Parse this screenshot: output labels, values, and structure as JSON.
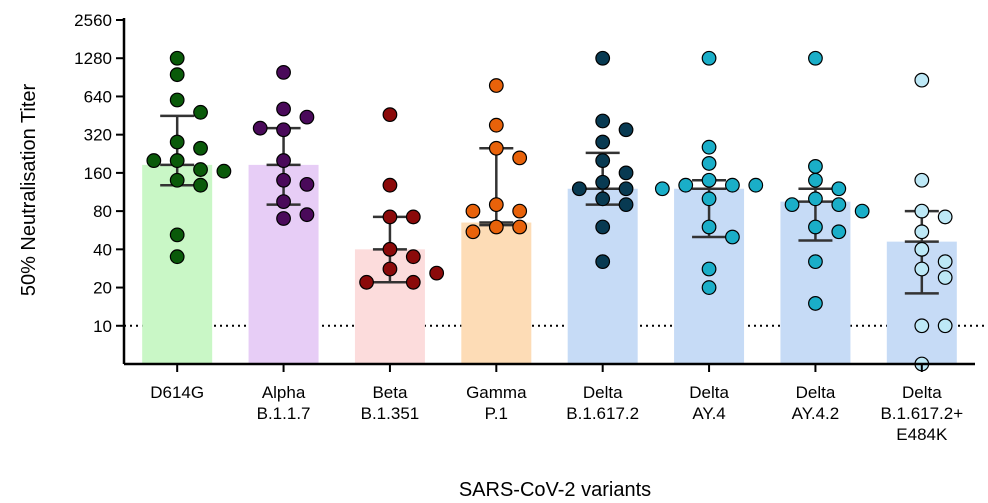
{
  "chart_data": {
    "type": "bar",
    "scale": "log2",
    "ylabel": "50% Neutralisation Titer",
    "xlabel": "SARS-CoV-2 variants",
    "yticks": [
      10,
      20,
      40,
      80,
      160,
      320,
      640,
      1280,
      2560
    ],
    "ytick_labels": [
      "10",
      "20",
      "40",
      "80",
      "160",
      "320",
      "640",
      "1280",
      "2560"
    ],
    "ylim": [
      5,
      2560
    ],
    "threshold": 10,
    "threshold_style": "dotted",
    "categories": [
      {
        "lines": [
          "D614G"
        ],
        "bar": 185,
        "color_bar": "#c9f7c6",
        "color_point": "#0a5a0a",
        "err": [
          128,
          450
        ],
        "points": [
          1280,
          950,
          600,
          480,
          280,
          250,
          200,
          170,
          200,
          165,
          140,
          128,
          52,
          35
        ]
      },
      {
        "lines": [
          "Alpha",
          "B.1.1.7"
        ],
        "bar": 185,
        "color_bar": "#e7cdf6",
        "color_point": "#4a0a5a",
        "err": [
          90,
          360
        ],
        "points": [
          990,
          510,
          440,
          350,
          360,
          200,
          140,
          130,
          95,
          70,
          75
        ]
      },
      {
        "lines": [
          "Beta",
          "B.1.351"
        ],
        "bar": 40,
        "color_bar": "#fcdcdc",
        "color_point": "#8b0a0a",
        "err": [
          22,
          72
        ],
        "points": [
          460,
          128,
          72,
          72,
          40,
          35,
          28,
          22,
          22,
          26
        ]
      },
      {
        "lines": [
          "Gamma",
          "P.1"
        ],
        "bar": 65,
        "color_bar": "#fddcb6",
        "color_point": "#e8620a",
        "err": [
          62,
          250
        ],
        "points": [
          780,
          380,
          250,
          210,
          90,
          80,
          80,
          60,
          60,
          55
        ]
      },
      {
        "lines": [
          "Delta",
          "B.1.617.2"
        ],
        "bar": 120,
        "color_bar": "#c6dbf6",
        "color_point": "#083a52",
        "err": [
          90,
          230
        ],
        "points": [
          1280,
          410,
          350,
          280,
          200,
          160,
          135,
          120,
          120,
          100,
          90,
          60,
          32
        ]
      },
      {
        "lines": [
          "Delta",
          "AY.4"
        ],
        "bar": 120,
        "color_bar": "#c6dbf6",
        "color_point": "#1aaec8",
        "err": [
          50,
          140
        ],
        "points": [
          1280,
          255,
          190,
          140,
          128,
          128,
          128,
          120,
          100,
          60,
          50,
          28,
          20
        ]
      },
      {
        "lines": [
          "Delta",
          "AY.4.2"
        ],
        "bar": 95,
        "color_bar": "#c6dbf6",
        "color_point": "#1aaec8",
        "err": [
          47,
          120
        ],
        "points": [
          1280,
          180,
          140,
          120,
          100,
          90,
          90,
          80,
          60,
          55,
          32,
          15
        ]
      },
      {
        "lines": [
          "Delta",
          "B.1.617.2+",
          "E484K"
        ],
        "bar": 46,
        "color_bar": "#c6dbf6",
        "color_point": "#bde8f6",
        "err": [
          18,
          80
        ],
        "points": [
          860,
          140,
          80,
          72,
          55,
          40,
          32,
          28,
          24,
          10,
          10,
          5
        ]
      }
    ]
  }
}
